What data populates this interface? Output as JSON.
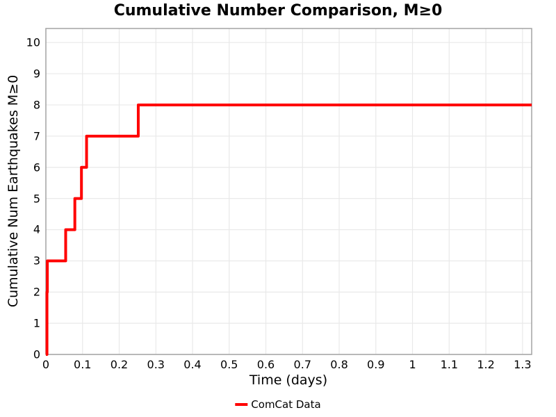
{
  "figure": {
    "background": "#ffffff"
  },
  "chart_data": {
    "type": "line",
    "line_style": "step-post",
    "title": "Cumulative Number Comparison, M≥0",
    "xlabel": "Time (days)",
    "ylabel": "Cumulative Num Earthquakes M≥0",
    "xlim": [
      0,
      1.325
    ],
    "ylim": [
      0,
      10.45
    ],
    "grid": true,
    "grid_color": "#e9e9e9",
    "spine_color": "#a3a3a3",
    "xticks": {
      "values": [
        0,
        0.1,
        0.2,
        0.3,
        0.4,
        0.5,
        0.6,
        0.7,
        0.8,
        0.9,
        1.0,
        1.1,
        1.2,
        1.3
      ],
      "labels": [
        "0",
        "0.1",
        "0.2",
        "0.3",
        "0.4",
        "0.5",
        "0.6",
        "0.7",
        "0.8",
        "0.9",
        "1",
        "1.1",
        "1.2",
        "1.3"
      ]
    },
    "yticks": {
      "values": [
        0,
        1,
        2,
        3,
        4,
        5,
        6,
        7,
        8,
        9,
        10
      ],
      "labels": [
        "0",
        "1",
        "2",
        "3",
        "4",
        "5",
        "6",
        "7",
        "8",
        "9",
        "10"
      ]
    },
    "legend": {
      "position": "bottom-center",
      "entries": [
        {
          "label": "ComCat Data",
          "color": "#ff0000"
        }
      ]
    },
    "series": [
      {
        "name": "ComCat Data",
        "color": "#ff0000",
        "line_width": 4,
        "start": [
          0,
          0
        ],
        "end_x": 1.325,
        "event_times_days": [
          0.003,
          0.003,
          0.004,
          0.054,
          0.079,
          0.097,
          0.111,
          0.252
        ],
        "cumulative_counts": [
          1,
          2,
          3,
          4,
          5,
          6,
          7,
          8
        ]
      }
    ]
  }
}
